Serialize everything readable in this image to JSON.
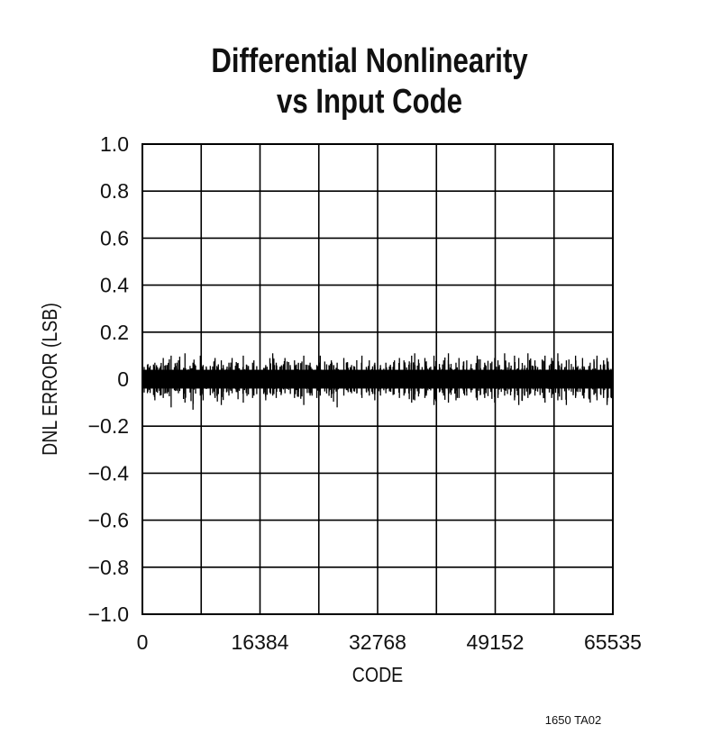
{
  "chart_data": {
    "type": "line",
    "title": [
      "Differential Nonlinearity",
      "vs Input Code"
    ],
    "xlabel": "CODE",
    "ylabel": "DNL ERROR (LSB)",
    "xlim": [
      0,
      65535
    ],
    "ylim": [
      -1.0,
      1.0
    ],
    "x_ticks": [
      "0",
      "16384",
      "32768",
      "49152",
      "65535"
    ],
    "y_ticks": [
      "1.0",
      "0.8",
      "0.6",
      "0.4",
      "0.2",
      "0",
      "−0.2",
      "−0.4",
      "−0.6",
      "−0.8",
      "−1.0"
    ],
    "grid": true,
    "grid_x_step": 8192,
    "grid_y_step": 0.2,
    "series_color": "#000000",
    "core_band": [
      -0.04,
      0.04
    ],
    "envelope_bin_width": 1024,
    "envelope_max": [
      0.08,
      0.07,
      0.09,
      0.1,
      0.08,
      0.11,
      0.07,
      0.1,
      0.06,
      0.09,
      0.08,
      0.07,
      0.09,
      0.1,
      0.07,
      0.08,
      0.06,
      0.11,
      0.07,
      0.09,
      0.08,
      0.1,
      0.07,
      0.06,
      0.1,
      0.08,
      0.07,
      0.09,
      0.06,
      0.1,
      0.08,
      0.07,
      0.06,
      0.07,
      0.09,
      0.08,
      0.1,
      0.11,
      0.09,
      0.1,
      0.08,
      0.11,
      0.07,
      0.09,
      0.08,
      0.1,
      0.07,
      0.09,
      0.08,
      0.11,
      0.1,
      0.09,
      0.11,
      0.08,
      0.1,
      0.09,
      0.11,
      0.08,
      0.1,
      0.09,
      0.07,
      0.1,
      0.08,
      0.09
    ],
    "envelope_min": [
      -0.07,
      -0.09,
      -0.08,
      -0.12,
      -0.06,
      -0.1,
      -0.13,
      -0.07,
      -0.09,
      -0.08,
      -0.11,
      -0.07,
      -0.06,
      -0.1,
      -0.08,
      -0.07,
      -0.09,
      -0.07,
      -0.08,
      -0.06,
      -0.08,
      -0.11,
      -0.07,
      -0.08,
      -0.07,
      -0.08,
      -0.12,
      -0.07,
      -0.06,
      -0.08,
      -0.07,
      -0.09,
      -0.07,
      -0.06,
      -0.08,
      -0.07,
      -0.1,
      -0.09,
      -0.08,
      -0.11,
      -0.07,
      -0.1,
      -0.09,
      -0.08,
      -0.07,
      -0.09,
      -0.08,
      -0.1,
      -0.08,
      -0.07,
      -0.09,
      -0.11,
      -0.08,
      -0.07,
      -0.1,
      -0.08,
      -0.09,
      -0.11,
      -0.08,
      -0.07,
      -0.1,
      -0.09,
      -0.08,
      -0.11
    ]
  },
  "footnote": "1650 TA02"
}
